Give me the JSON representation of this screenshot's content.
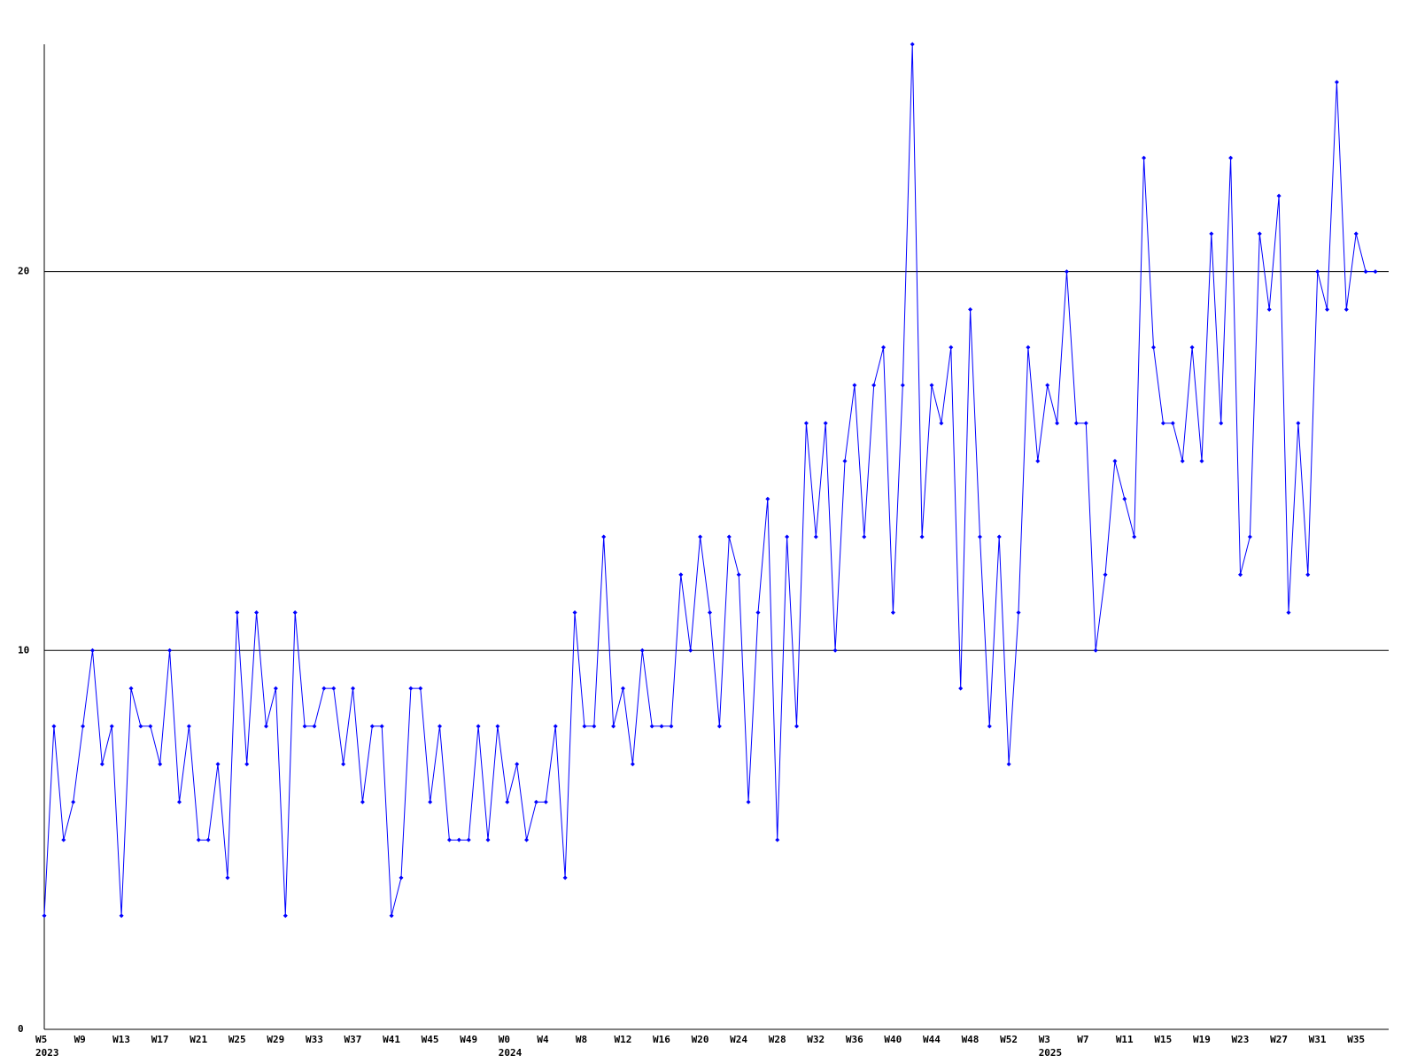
{
  "chart_data": {
    "type": "line",
    "categories": [
      "W5",
      null,
      null,
      null,
      "W9",
      null,
      null,
      null,
      "W13",
      null,
      null,
      null,
      "W17",
      null,
      null,
      null,
      "W21",
      null,
      null,
      null,
      "W25",
      null,
      null,
      null,
      "W29",
      null,
      null,
      null,
      "W33",
      null,
      null,
      null,
      "W37",
      null,
      null,
      null,
      "W41",
      null,
      null,
      null,
      "W45",
      null,
      null,
      null,
      "W49",
      null,
      null,
      null,
      "W0",
      null,
      null,
      null,
      "W4",
      null,
      null,
      null,
      "W8",
      null,
      null,
      null,
      "W12",
      null,
      null,
      null,
      "W16",
      null,
      null,
      null,
      "W20",
      null,
      null,
      null,
      "W24",
      null,
      null,
      null,
      "W28",
      null,
      null,
      null,
      "W32",
      null,
      null,
      null,
      "W36",
      null,
      null,
      null,
      "W40",
      null,
      null,
      null,
      "W44",
      null,
      null,
      null,
      "W48",
      null,
      null,
      null,
      "W52",
      null,
      null,
      null,
      "W3",
      null,
      null,
      null,
      "W7",
      null,
      null,
      null,
      "W11",
      null,
      null,
      null,
      "W15",
      null,
      null,
      null,
      "W19",
      null,
      null,
      null,
      "W23",
      null,
      null,
      null,
      "W27",
      null,
      null,
      null,
      "W31",
      null,
      null,
      null,
      "W35",
      null,
      null
    ],
    "years": [
      "2023",
      null,
      null,
      null,
      null,
      null,
      null,
      null,
      null,
      null,
      null,
      null,
      null,
      null,
      null,
      null,
      null,
      null,
      null,
      null,
      null,
      null,
      null,
      null,
      null,
      null,
      null,
      null,
      null,
      null,
      null,
      null,
      null,
      null,
      null,
      null,
      null,
      null,
      null,
      null,
      null,
      null,
      null,
      null,
      null,
      null,
      null,
      null,
      "2024",
      null,
      null,
      null,
      null,
      null,
      null,
      null,
      null,
      null,
      null,
      null,
      null,
      null,
      null,
      null,
      null,
      null,
      null,
      null,
      null,
      null,
      null,
      null,
      null,
      null,
      null,
      null,
      null,
      null,
      null,
      null,
      null,
      null,
      null,
      null,
      null,
      null,
      null,
      null,
      null,
      null,
      null,
      null,
      null,
      null,
      null,
      null,
      null,
      null,
      null,
      null,
      null,
      null,
      null,
      null,
      "2025",
      null,
      null,
      null,
      null,
      null,
      null,
      null,
      null,
      null,
      null,
      null,
      null,
      null,
      null,
      null,
      null,
      null,
      null,
      null,
      null,
      null,
      null,
      null,
      null,
      null,
      null,
      null,
      null,
      null,
      null,
      null,
      null,
      null
    ],
    "series": [
      {
        "color": "#0000ff",
        "values": [
          3,
          8,
          5,
          6,
          8,
          10,
          7,
          8,
          3,
          9,
          8,
          8,
          7,
          10,
          6,
          8,
          5,
          5,
          7,
          4,
          11,
          7,
          11,
          8,
          9,
          3,
          11,
          8,
          8,
          9,
          9,
          7,
          9,
          6,
          8,
          8,
          3,
          4,
          9,
          9,
          6,
          8,
          5,
          5,
          5,
          8,
          5,
          8,
          6,
          7,
          5,
          6,
          6,
          8,
          4,
          11,
          8,
          8,
          13,
          8,
          9,
          7,
          10,
          8,
          8,
          8,
          12,
          10,
          13,
          11,
          8,
          13,
          12,
          6,
          11,
          14,
          5,
          13,
          8,
          16,
          13,
          16,
          10,
          15,
          17,
          13,
          17,
          18,
          11,
          17,
          26,
          13,
          17,
          16,
          18,
          9,
          19,
          13,
          8,
          13,
          7,
          11,
          18,
          15,
          17,
          16,
          20,
          16,
          16,
          10,
          12,
          15,
          14,
          13,
          23,
          18,
          16,
          16,
          15,
          18,
          15,
          21,
          16,
          23,
          12,
          13,
          21,
          19,
          22,
          11,
          16,
          12,
          20,
          19,
          25,
          19,
          21,
          20,
          20
        ]
      }
    ],
    "ylim": [
      0,
      26
    ],
    "yticks": [
      0,
      10,
      20
    ],
    "grid": true
  }
}
